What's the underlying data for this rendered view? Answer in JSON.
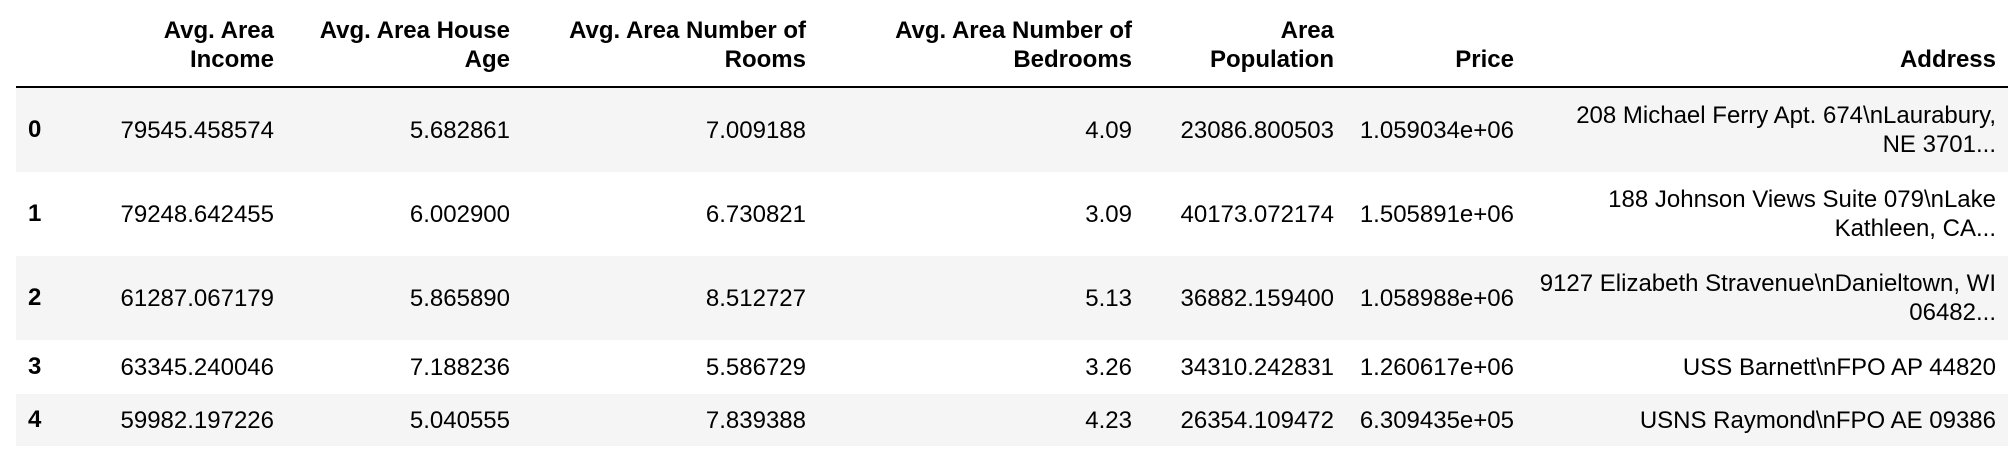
{
  "columns": [
    "",
    "Avg. Area Income",
    "Avg. Area House Age",
    "Avg. Area Number of Rooms",
    "Avg. Area Number of Bedrooms",
    "Area Population",
    "Price",
    "Address"
  ],
  "rows": [
    {
      "index": "0",
      "cells": [
        "79545.458574",
        "5.682861",
        "7.009188",
        "4.09",
        "23086.800503",
        "1.059034e+06",
        "208 Michael Ferry Apt. 674\\nLaurabury, NE 3701..."
      ]
    },
    {
      "index": "1",
      "cells": [
        "79248.642455",
        "6.002900",
        "6.730821",
        "3.09",
        "40173.072174",
        "1.505891e+06",
        "188 Johnson Views Suite 079\\nLake Kathleen, CA..."
      ]
    },
    {
      "index": "2",
      "cells": [
        "61287.067179",
        "5.865890",
        "8.512727",
        "5.13",
        "36882.159400",
        "1.058988e+06",
        "9127 Elizabeth Stravenue\\nDanieltown, WI 06482..."
      ]
    },
    {
      "index": "3",
      "cells": [
        "63345.240046",
        "7.188236",
        "5.586729",
        "3.26",
        "34310.242831",
        "1.260617e+06",
        "USS Barnett\\nFPO AP 44820"
      ]
    },
    {
      "index": "4",
      "cells": [
        "59982.197226",
        "5.040555",
        "7.839388",
        "4.23",
        "26354.109472",
        "6.309435e+05",
        "USNS Raymond\\nFPO AE 09386"
      ]
    }
  ]
}
